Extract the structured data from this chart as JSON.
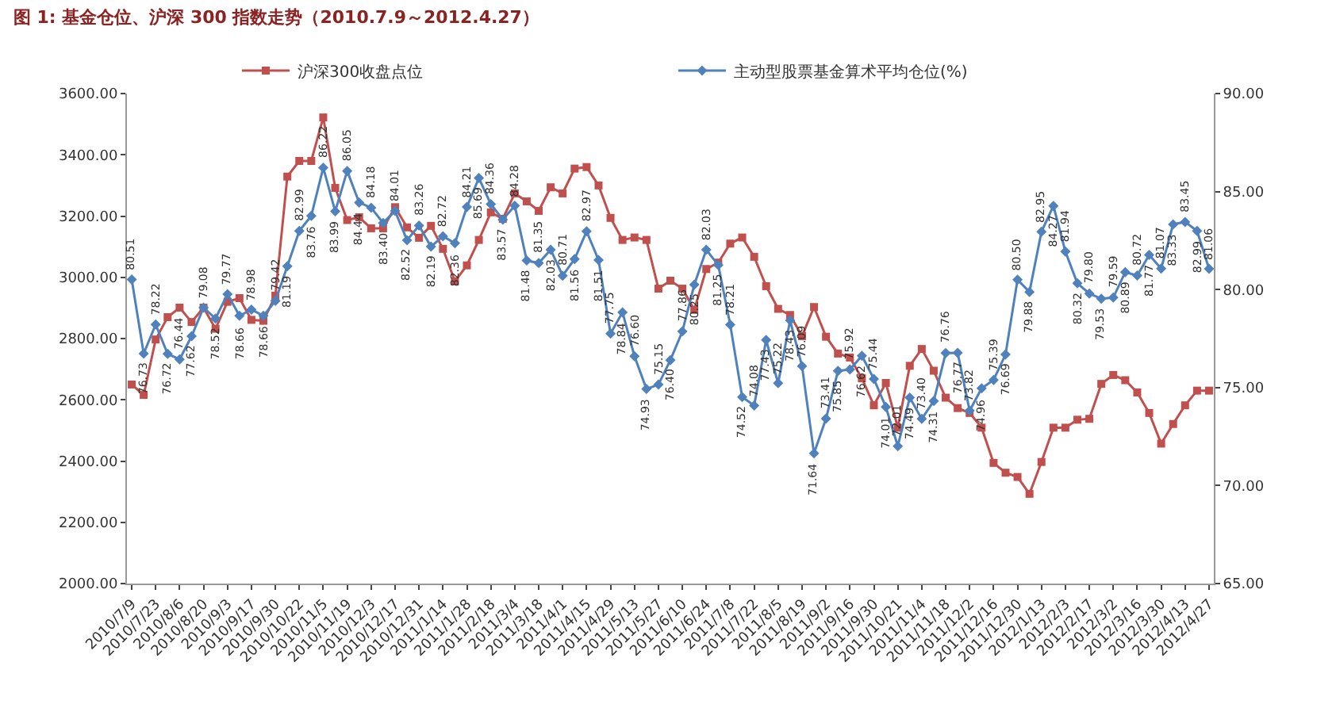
{
  "chart_data": {
    "type": "line",
    "title": "图 1: 基金仓位、沪深 300 指数走势（2010.7.9～2012.4.27）",
    "categories": [
      "2010/7/9",
      null,
      "2010/7/23",
      null,
      "2010/8/6",
      null,
      "2010/8/20",
      null,
      "2010/9/3",
      null,
      "2010/9/17",
      null,
      "2010/9/30",
      null,
      "2010/10/22",
      null,
      "2010/11/5",
      null,
      "2010/11/19",
      null,
      "2010/12/3",
      null,
      "2010/12/17",
      null,
      "2010/12/31",
      null,
      "2011/1/14",
      null,
      "2011/1/28",
      null,
      "2011/2/18",
      null,
      "2011/3/4",
      null,
      "2011/3/18",
      null,
      "2011/4/1",
      null,
      "2011/4/15",
      null,
      "2011/4/29",
      null,
      "2011/5/13",
      null,
      "2011/5/27",
      null,
      "2011/6/10",
      null,
      "2011/6/24",
      null,
      "2011/7/8",
      null,
      "2011/7/22",
      null,
      "2011/8/5",
      null,
      "2011/8/19",
      null,
      "2011/9/2",
      null,
      "2011/9/16",
      null,
      "2011/9/30",
      null,
      "2011/10/21",
      null,
      "2011/11/4",
      null,
      "2011/11/18",
      null,
      "2011/12/2",
      null,
      "2011/12/16",
      null,
      "2011/12/30",
      null,
      "2012/1/13",
      null,
      "2012/2/3",
      null,
      "2012/2/17",
      null,
      "2012/3/2",
      null,
      "2012/3/16",
      null,
      "2012/3/30",
      null,
      "2012/4/13",
      null,
      "2012/4/27"
    ],
    "series": [
      {
        "name": "沪深300收盘点位",
        "color": "#c0504d",
        "marker": "square",
        "values": [
          2650,
          2616,
          2797,
          2870,
          2901,
          2854,
          2901,
          2832,
          2920,
          2932,
          2861,
          2858,
          2940,
          3329,
          3380,
          3380,
          3522,
          3292,
          3187,
          3196,
          3160,
          3160,
          3229,
          3163,
          3129,
          3168,
          3093,
          2987,
          3039,
          3122,
          3212,
          3191,
          3274,
          3248,
          3217,
          3294,
          3274,
          3355,
          3360,
          3300,
          3194,
          3122,
          3130,
          3122,
          2963,
          2989,
          2963,
          2894,
          3027,
          3048,
          3110,
          3130,
          3067,
          2971,
          2897,
          2877,
          2808,
          2903,
          2806,
          2751,
          2738,
          2670,
          2582,
          2655,
          2509,
          2711,
          2766,
          2695,
          2607,
          2573,
          2557,
          2509,
          2394,
          2362,
          2348,
          2293,
          2397,
          2509,
          2509,
          2535,
          2538,
          2652,
          2681,
          2664,
          2624,
          2557,
          2457,
          2521,
          2582,
          2630,
          2630
        ]
      },
      {
        "name": "主动型股票基金算术平均仓位(%)",
        "color": "#4f81bd",
        "marker": "diamond",
        "axis": "y2",
        "value_labels": [
          "80.51",
          "76.73",
          "78.22",
          "76.72",
          "76.44",
          "77.62",
          "79.08",
          "78.52",
          "79.77",
          "78.66",
          "78.98",
          "78.66",
          "79.42",
          "81.19",
          "82.99",
          "83.76",
          "86.22",
          "83.99",
          "86.05",
          "84.44",
          "84.18",
          "83.40",
          "84.01",
          "82.52",
          "83.26",
          "82.19",
          "82.72",
          "82.36",
          "84.21",
          "85.69",
          "84.36",
          "83.57",
          "84.28",
          "81.48",
          "81.35",
          "82.03",
          "80.71",
          "81.56",
          "82.97",
          "81.51",
          "77.75",
          "78.84",
          "76.60",
          "74.93",
          "75.15",
          "76.40",
          "77.86",
          "80.25",
          "82.03",
          "81.25",
          "78.21",
          "74.52",
          "74.08",
          "77.43",
          "75.22",
          "78.43",
          "76.09",
          "71.64",
          "73.41",
          "75.85",
          "75.92",
          "76.62",
          "75.44",
          "74.01",
          "72.01",
          "74.49",
          "73.40",
          "74.31",
          "76.76",
          "76.77",
          "73.82",
          "74.96",
          "75.39",
          "76.69",
          "80.50",
          "79.88",
          "82.95",
          "84.27",
          "81.94",
          "80.32",
          "79.80",
          "79.53",
          "79.59",
          "80.89",
          "80.72",
          "81.77",
          "81.07",
          "83.33",
          "83.45",
          "82.99",
          "81.06"
        ],
        "values": [
          80.51,
          76.73,
          78.22,
          76.72,
          76.44,
          77.62,
          79.08,
          78.52,
          79.77,
          78.66,
          78.98,
          78.66,
          79.42,
          81.19,
          82.99,
          83.76,
          86.22,
          83.99,
          86.05,
          84.44,
          84.18,
          83.4,
          84.01,
          82.52,
          83.26,
          82.19,
          82.72,
          82.36,
          84.21,
          85.69,
          84.36,
          83.57,
          84.28,
          81.48,
          81.35,
          82.03,
          80.71,
          81.56,
          82.97,
          81.51,
          77.75,
          78.84,
          76.6,
          74.93,
          75.15,
          76.4,
          77.86,
          80.25,
          82.03,
          81.25,
          78.21,
          74.52,
          74.08,
          77.43,
          75.22,
          78.43,
          76.09,
          71.64,
          73.41,
          75.85,
          75.92,
          76.62,
          75.44,
          74.01,
          72.01,
          74.49,
          73.4,
          74.31,
          76.76,
          76.77,
          73.82,
          74.96,
          75.39,
          76.69,
          80.5,
          79.88,
          82.95,
          84.27,
          81.94,
          80.32,
          79.8,
          79.53,
          79.59,
          80.89,
          80.72,
          81.77,
          81.07,
          83.33,
          83.45,
          82.99,
          81.06
        ]
      }
    ],
    "ylim": [
      2000,
      3600
    ],
    "yticks": [
      {
        "value": 2000,
        "label": "2000.00"
      },
      {
        "value": 2200,
        "label": "2200.00"
      },
      {
        "value": 2400,
        "label": "2400.00"
      },
      {
        "value": 2600,
        "label": "2600.00"
      },
      {
        "value": 2800,
        "label": "2800.00"
      },
      {
        "value": 3000,
        "label": "3000.00"
      },
      {
        "value": 3200,
        "label": "3200.00"
      },
      {
        "value": 3400,
        "label": "3400.00"
      },
      {
        "value": 3600,
        "label": "3600.00"
      }
    ],
    "y2lim": [
      65,
      90
    ],
    "y2ticks": [
      {
        "value": 65,
        "label": "65.00"
      },
      {
        "value": 70,
        "label": "70.00"
      },
      {
        "value": 75,
        "label": "75.00"
      },
      {
        "value": 80,
        "label": "80.00"
      },
      {
        "value": 85,
        "label": "85.00"
      },
      {
        "value": 90,
        "label": "90.00"
      }
    ],
    "legend": "top",
    "line_style": "solid"
  }
}
